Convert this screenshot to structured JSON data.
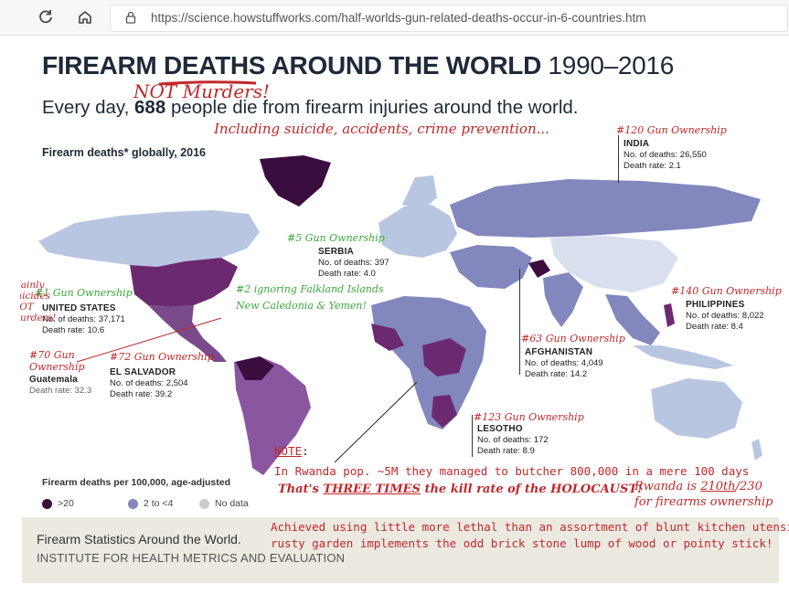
{
  "browser": {
    "url": "https://science.howstuffworks.com/half-worlds-gun-related-deaths-occur-in-6-countries.htm"
  },
  "graphic": {
    "title_part1": "FIREARM",
    "title_deaths": "DEATHS",
    "title_part2": "AROUND THE WORLD",
    "title_years": "1990–2016",
    "subtitle_pre": "Every day,",
    "subtitle_num": "688",
    "subtitle_post": "people die from firearm injuries around the world.",
    "map_title": "Firearm deaths* globally, 2016",
    "legend_title": "Firearm deaths per 100,000, age-adjusted",
    "legend": [
      {
        "label": ">20",
        "color": "#3b0d3f"
      },
      {
        "label": "2 to <4",
        "color": "#8288bd"
      },
      {
        "label": "No data",
        "color": "#cccccc"
      }
    ],
    "countries": {
      "india": {
        "name": "INDIA",
        "deaths": "No. of deaths: 26,550",
        "rate": "Death rate: 2.1"
      },
      "serbia": {
        "name": "SERBIA",
        "deaths": "No. of deaths: 397",
        "rate": "Death rate: 4.0"
      },
      "us": {
        "name": "UNITED STATES",
        "deaths": "No. of deaths: 37,171",
        "rate": "Death rate: 10.6"
      },
      "philippines": {
        "name": "PHILIPPINES",
        "deaths": "No. of deaths: 8,022",
        "rate": "Death rate: 8.4"
      },
      "afghanistan": {
        "name": "AFGHANISTAN",
        "deaths": "No. of deaths: 4,049",
        "rate": "Death rate: 14.2"
      },
      "el_salvador": {
        "name": "EL SALVADOR",
        "deaths": "No. of deaths: 2,504",
        "rate": "Death rate: 39.2"
      },
      "guatemala": {
        "name": "Guatemala",
        "rate": "Death rate: 32.3"
      },
      "lesotho": {
        "name": "LESOTHO",
        "deaths": "No. of deaths: 172",
        "rate": "Death rate: 8.9"
      }
    }
  },
  "annotations": {
    "not_murders": "NOT Murders!",
    "including": "Including suicide, accidents, crime prevention...",
    "india_rank": "#120 Gun Ownership",
    "serbia_rank": "#5 Gun Ownership",
    "us_rank": "#1 Gun Ownership",
    "mainly_suicides": [
      "Mainly",
      "suicides",
      "NOT",
      "murders!"
    ],
    "falkland": [
      "#2 ignoring Falkland Islands",
      "New Caledonia & Yemen!"
    ],
    "philippines_rank": "#140 Gun Ownership",
    "afghanistan_rank": "#63 Gun Ownership",
    "guatemala_rank": [
      "#70 Gun",
      "Ownership"
    ],
    "el_salvador_rank": "#72 Gun Ownership",
    "lesotho_rank": "#123 Gun Ownership",
    "note_label": "NOTE",
    "note_colon": ":",
    "rwanda": "In Rwanda pop. ~5M they managed to butcher 800,000 in a mere 100 days",
    "rwanda_rank_pre": "Rwanda is ",
    "rwanda_rank_num": "210th",
    "rwanda_rank_post": "/230",
    "rwanda_rank_2": "for firearms ownership",
    "holocaust_pre": "That's ",
    "holocaust_em": "THREE TIMES",
    "holocaust_post": " the kill rate of the HOLOCAUST!",
    "achieved_1": "Achieved using little more lethal than an assortment of blunt kitchen utensils",
    "achieved_2": "rusty garden implements the odd brick stone lump of wood or pointy stick!"
  },
  "footer": {
    "title": "Firearm Statistics Around the World.",
    "org": "INSTITUTE FOR HEALTH METRICS AND EVALUATION"
  },
  "colors": {
    "dark_purple": "#3b0d3f",
    "purple": "#6b2a6f",
    "mid_purple": "#7a4a8a",
    "blue_lavender": "#8288bd",
    "light_blue": "#b9c6e2",
    "pale": "#d8e0ee",
    "annotation_red": "#c0282b",
    "annotation_green": "#3aa83a"
  }
}
